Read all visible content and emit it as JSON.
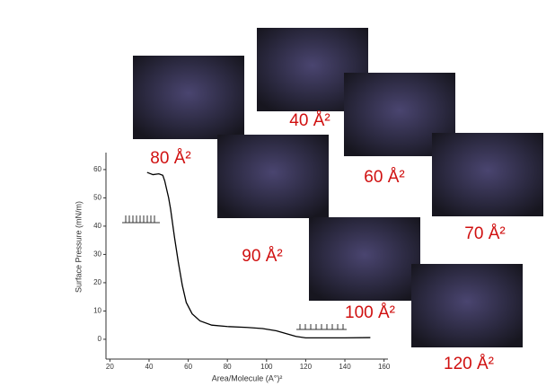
{
  "chart_data": {
    "type": "line",
    "x_label": "Area/Molecule (A°)²",
    "y_label": "Surface Pressure (mN/m)",
    "xlim": [
      18,
      162
    ],
    "ylim": [
      -7,
      66
    ],
    "xticks": [
      20,
      40,
      60,
      80,
      100,
      120,
      140,
      160
    ],
    "yticks": [
      0,
      10,
      20,
      30,
      40,
      50,
      60
    ],
    "series": [
      {
        "color": "#000000",
        "x": [
          39,
          42,
          45,
          47,
          48,
          49,
          50,
          51,
          52,
          53,
          55,
          57,
          59,
          62,
          66,
          72,
          80,
          90,
          98,
          105,
          110,
          115,
          120,
          130,
          140,
          153
        ],
        "values": [
          59,
          58.2,
          58.5,
          58,
          56,
          53,
          50,
          46,
          41,
          36,
          27,
          19,
          13,
          9,
          6.5,
          5,
          4.5,
          4.2,
          3.8,
          3,
          2,
          1,
          0.5,
          0.5,
          0.5,
          0.6
        ]
      }
    ],
    "annotations": [
      "80 Å²",
      "40 Å²",
      "60 Å²",
      "90 Å²",
      "70 Å²",
      "100 Å²",
      "120 Å²"
    ]
  }
}
